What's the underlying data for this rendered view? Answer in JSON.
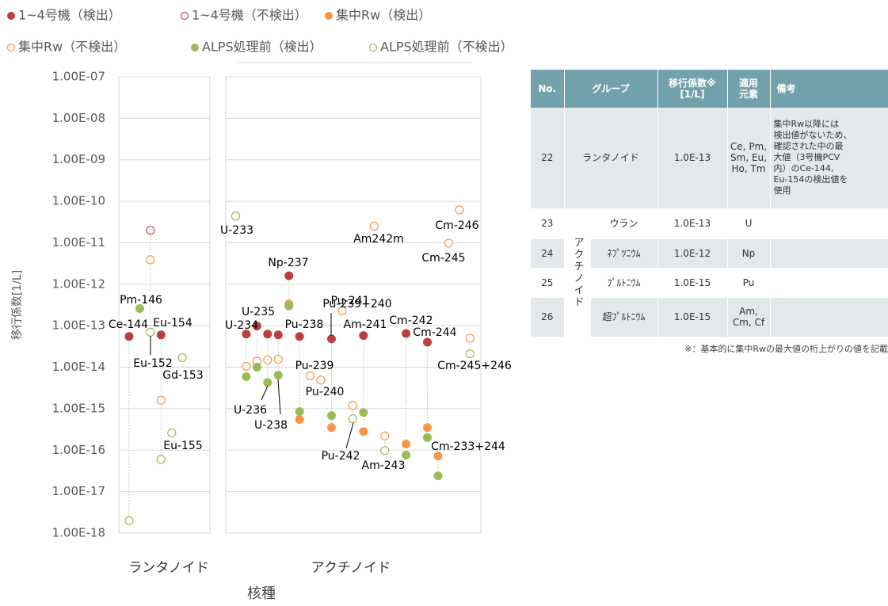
{
  "chart_data": {
    "type": "scatter",
    "y_label": "移行係数[1/L]",
    "x_label": "核種",
    "categories": [
      "ランタノイド",
      "アクチノイド"
    ],
    "log_scale": true,
    "grid": true,
    "legend": "top",
    "xlim": [
      0,
      34
    ],
    "ylim": [
      1e-18,
      1e-07
    ],
    "yticks": [
      {
        "value": 1e-07,
        "label": "1.00E-07"
      },
      {
        "value": 1e-08,
        "label": "1.00E-08"
      },
      {
        "value": 1e-09,
        "label": "1.00E-09"
      },
      {
        "value": 1e-10,
        "label": "1.00E-10"
      },
      {
        "value": 1e-11,
        "label": "1.00E-11"
      },
      {
        "value": 1e-12,
        "label": "1.00E-12"
      },
      {
        "value": 1e-13,
        "label": "1.00E-13"
      },
      {
        "value": 1e-14,
        "label": "1.00E-14"
      },
      {
        "value": 1e-15,
        "label": "1.00E-15"
      },
      {
        "value": 1e-16,
        "label": "1.00E-16"
      },
      {
        "value": 1e-17,
        "label": "1.00E-17"
      },
      {
        "value": 1e-18,
        "label": "1.00E-18"
      }
    ],
    "series": [
      {
        "name": "1~4号機（検出）",
        "color": "#b9403c",
        "filled": true,
        "x": [
          1,
          4,
          12,
          13,
          14,
          15,
          16,
          17,
          20,
          23,
          27,
          29
        ],
        "values": [
          5.5e-14,
          6e-14,
          6.3e-14,
          9.8e-14,
          6.3e-14,
          6e-14,
          1.6e-12,
          5.5e-14,
          4.8e-14,
          5.8e-14,
          6.5e-14,
          4e-14
        ]
      },
      {
        "name": "1~4号機（不検出）",
        "color": "#c0504d",
        "filled": false,
        "x": [
          3
        ],
        "values": [
          2e-11
        ]
      },
      {
        "name": "集中Rw（検出）",
        "color": "#f79646",
        "filled": true,
        "x": [
          16,
          17,
          20,
          23,
          27,
          29,
          30
        ],
        "values": [
          3.3e-13,
          5.5e-16,
          3.5e-16,
          2.8e-16,
          1.4e-16,
          3.5e-16,
          7.2e-17
        ]
      },
      {
        "name": "集中Rw（不検出）",
        "color": "#f79646",
        "filled": false,
        "x": [
          3,
          4,
          12,
          13,
          14,
          15,
          18,
          19,
          21,
          22,
          24,
          25,
          31,
          32,
          33
        ],
        "values": [
          3.9e-12,
          1.6e-15,
          1.05e-14,
          1.4e-14,
          1.5e-14,
          1.55e-14,
          6.2e-15,
          4.9e-15,
          2.3e-13,
          1.2e-15,
          2.5e-11,
          2.2e-16,
          9.8e-12,
          6.2e-11,
          5e-14
        ]
      },
      {
        "name": "ALPS処理前（検出）",
        "color": "#9bbb59",
        "filled": true,
        "x": [
          2,
          12,
          13,
          14,
          15,
          16,
          17,
          20,
          23,
          27,
          29,
          30
        ],
        "values": [
          2.6e-13,
          5.9e-15,
          1e-14,
          4.3e-15,
          6.4e-15,
          3e-13,
          8.5e-16,
          6.8e-16,
          8.1e-16,
          7.6e-17,
          2e-16,
          2.4e-17
        ]
      },
      {
        "name": "ALPS処理前（不検出）",
        "color": "#9bbb59",
        "filled": false,
        "x": [
          1,
          3,
          4,
          5,
          6,
          11,
          22,
          25,
          33
        ],
        "values": [
          2e-18,
          7e-14,
          6e-17,
          2.6e-16,
          1.7e-14,
          4.4e-11,
          5.7e-16,
          9.8e-17,
          2.1e-14
        ]
      }
    ],
    "annotations": [
      "Ce-144",
      "Pm-146",
      "Eu-154",
      "Eu-152",
      "Gd-153",
      "Eu-155",
      "U-233",
      "Np-237",
      "U-235",
      "U-234",
      "Pu-238",
      "Pu-239+240",
      "Pu-241",
      "Am-241",
      "Cm-242",
      "Cm-244",
      "Am242m",
      "Cm-246",
      "Cm-245",
      "Pu-239",
      "Pu-240",
      "Cm-245+246",
      "U-236",
      "U-238",
      "Pu-242",
      "Am-243",
      "Cm-233+244"
    ]
  },
  "table": {
    "headers": [
      [
        "No."
      ],
      [
        "グループ"
      ],
      [
        "移行係数※",
        "[1/L]"
      ],
      [
        "適用",
        "元素"
      ],
      [
        "備考"
      ]
    ],
    "lanthanoid": {
      "no": "22",
      "group": "ランタノイド",
      "factor": "1.0E-13",
      "elements": [
        "Ce, Pm,",
        "Sm, Eu,",
        "Ho, Tm"
      ],
      "remarks": [
        "集中Rw以降には",
        "検出値がないため、",
        "確認された中の最",
        "大値（3号機PCV",
        "内）のCe-144,",
        "Eu-154の検出値を",
        "使用"
      ]
    },
    "actinoid": {
      "group": "アクチノイド",
      "rows": [
        {
          "no": "23",
          "name": "ウラン",
          "factor": "1.0E-13",
          "elements": [
            "U"
          ]
        },
        {
          "no": "24",
          "name": "ﾈﾌﾟﾂﾆｳﾑ",
          "factor": "1.0E-12",
          "elements": [
            "Np"
          ]
        },
        {
          "no": "25",
          "name": "ﾌﾟﾙﾄﾆｳﾑ",
          "factor": "1.0E-15",
          "elements": [
            "Pu"
          ]
        },
        {
          "no": "26",
          "name": "超ﾌﾟﾙﾄﾆｳﾑ",
          "factor": "1.0E-15",
          "elements": [
            "Am,",
            "Cm, Cf"
          ]
        }
      ]
    }
  },
  "note": "※：基本的に集中Rwの最大値の桁上がりの値を記載"
}
